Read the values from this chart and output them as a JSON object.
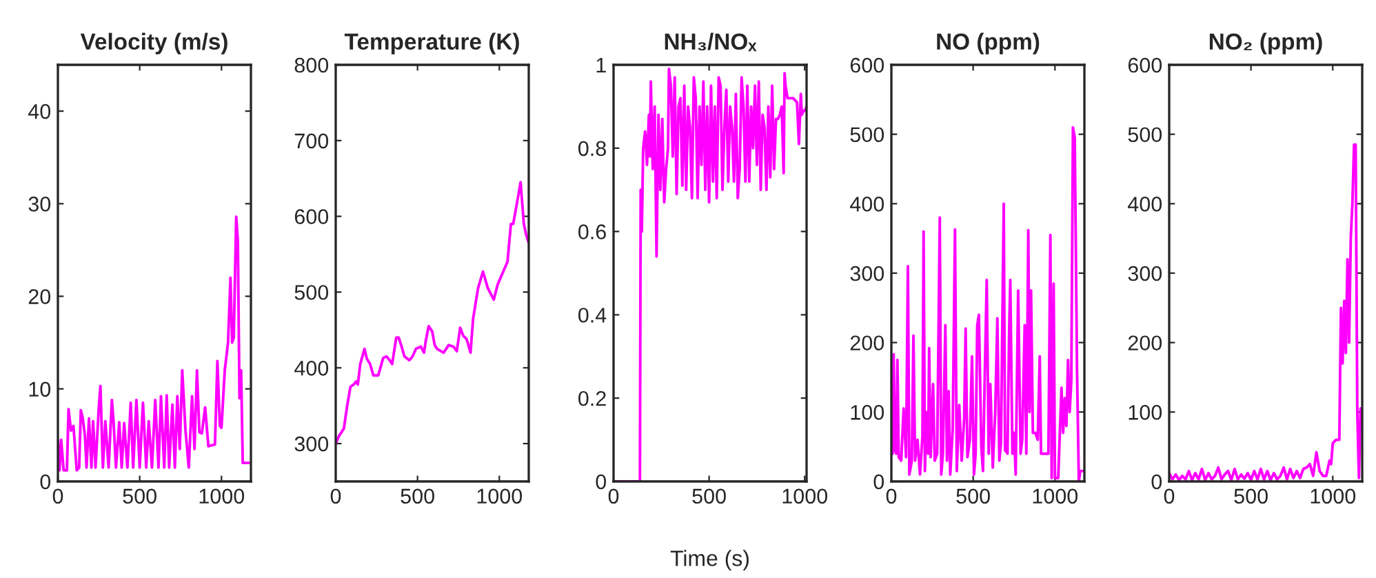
{
  "chart_data": [
    {
      "type": "line",
      "title": "Velocity (m/s)",
      "xlim": [
        0,
        1180
      ],
      "xticks": [
        0,
        500,
        1000
      ],
      "ylim": [
        0,
        45
      ],
      "yticks": [
        0,
        10,
        20,
        30,
        40
      ],
      "grid": false,
      "x": [
        0,
        10,
        20,
        35,
        55,
        65,
        80,
        95,
        115,
        130,
        140,
        150,
        165,
        175,
        190,
        205,
        215,
        230,
        250,
        260,
        275,
        290,
        310,
        330,
        340,
        355,
        375,
        390,
        405,
        425,
        445,
        460,
        480,
        500,
        520,
        540,
        555,
        575,
        595,
        615,
        630,
        650,
        665,
        680,
        700,
        715,
        730,
        745,
        760,
        780,
        800,
        820,
        835,
        850,
        865,
        880,
        900,
        920,
        960,
        975,
        990,
        1000,
        1020,
        1040,
        1055,
        1065,
        1075,
        1090,
        1100,
        1110,
        1120,
        1130,
        1140,
        1150,
        1170
      ],
      "series": [
        {
          "color": "#ff00ff",
          "values": [
            4.5,
            1.2,
            4.5,
            1.2,
            1.2,
            7.8,
            5.5,
            6,
            1.2,
            1.5,
            7.7,
            7,
            5,
            1.5,
            6.8,
            1.5,
            6.5,
            1.5,
            8,
            10.3,
            1.5,
            6.5,
            1.5,
            8.8,
            6.5,
            1.5,
            6.4,
            1.5,
            6.3,
            1.5,
            8.5,
            1.5,
            8.8,
            1.5,
            8.5,
            1.5,
            6.5,
            1.5,
            8.8,
            1.5,
            9.2,
            1.5,
            9.3,
            1.5,
            8.3,
            1.5,
            9.2,
            3.5,
            12,
            5.5,
            1.5,
            9.2,
            3.5,
            12,
            5.3,
            5.2,
            8,
            3.8,
            4,
            13,
            6,
            5.8,
            12,
            15,
            22,
            15,
            15.5,
            28.6,
            26,
            9,
            12,
            2,
            2,
            2,
            2
          ]
        }
      ]
    },
    {
      "type": "line",
      "title": "Temperature (K)",
      "xlim": [
        0,
        1180
      ],
      "xticks": [
        0,
        500,
        1000
      ],
      "ylim": [
        250,
        800
      ],
      "yticks": [
        300,
        400,
        500,
        600,
        700,
        800
      ],
      "grid": false,
      "x": [
        0,
        20,
        50,
        70,
        90,
        110,
        125,
        135,
        150,
        176,
        190,
        210,
        230,
        260,
        290,
        310,
        330,
        345,
        370,
        385,
        400,
        420,
        450,
        470,
        490,
        520,
        540,
        550,
        568,
        590,
        605,
        620,
        660,
        690,
        720,
        740,
        761,
        780,
        800,
        824,
        840,
        870,
        900,
        930,
        966,
        990,
        1020,
        1050,
        1071,
        1085,
        1110,
        1130,
        1150,
        1165,
        1180
      ],
      "series": [
        {
          "color": "#ff00ff",
          "values": [
            300,
            310,
            320,
            350,
            375,
            378,
            382,
            378,
            405,
            425,
            412,
            405,
            390,
            390,
            413,
            415,
            410,
            405,
            440,
            440,
            430,
            415,
            410,
            415,
            425,
            428,
            420,
            435,
            455,
            448,
            430,
            425,
            420,
            430,
            428,
            422,
            453,
            442,
            438,
            420,
            465,
            505,
            527,
            505,
            490,
            510,
            525,
            540,
            590,
            590,
            620,
            645,
            590,
            575,
            565
          ]
        }
      ]
    },
    {
      "type": "line",
      "title": "NH₃/NOₓ",
      "xlabel": "Time (s)",
      "xlim": [
        0,
        1010
      ],
      "xticks": [
        0,
        500,
        1000
      ],
      "ylim": [
        0,
        1
      ],
      "yticks": [
        0,
        0.2,
        0.4,
        0.6,
        0.8,
        1
      ],
      "grid": false,
      "x": [
        0,
        138,
        142,
        148,
        155,
        165,
        175,
        185,
        190,
        195,
        205,
        215,
        225,
        235,
        245,
        255,
        265,
        275,
        285,
        290,
        300,
        310,
        320,
        330,
        340,
        350,
        360,
        370,
        380,
        390,
        400,
        410,
        420,
        430,
        440,
        450,
        460,
        470,
        480,
        490,
        500,
        510,
        520,
        530,
        540,
        550,
        560,
        570,
        580,
        590,
        600,
        610,
        620,
        630,
        640,
        650,
        660,
        670,
        680,
        690,
        700,
        710,
        720,
        730,
        740,
        750,
        760,
        770,
        780,
        790,
        800,
        810,
        820,
        830,
        840,
        850,
        860,
        870,
        880,
        890,
        895,
        900,
        910,
        920,
        940,
        960,
        970,
        980,
        985,
        995,
        1002,
        1010
      ],
      "series": [
        {
          "color": "#ff00ff",
          "values": [
            0,
            0,
            0.7,
            0.6,
            0.8,
            0.84,
            0.76,
            0.88,
            0.78,
            0.96,
            0.75,
            0.9,
            0.54,
            0.88,
            0.7,
            0.87,
            0.67,
            0.75,
            0.8,
            0.99,
            0.95,
            0.78,
            0.97,
            0.69,
            0.9,
            0.92,
            0.71,
            0.95,
            0.7,
            0.9,
            0.85,
            0.68,
            0.97,
            0.92,
            0.68,
            0.9,
            0.76,
            0.96,
            0.7,
            0.9,
            0.67,
            0.95,
            0.72,
            0.9,
            0.68,
            0.97,
            0.95,
            0.7,
            0.85,
            0.94,
            0.72,
            0.9,
            0.85,
            0.72,
            0.93,
            0.68,
            0.75,
            0.97,
            0.9,
            0.72,
            0.95,
            0.72,
            0.9,
            0.8,
            0.95,
            0.76,
            0.96,
            0.7,
            0.88,
            0.85,
            0.7,
            0.9,
            0.73,
            0.95,
            0.75,
            0.87,
            0.87,
            0.88,
            0.9,
            0.74,
            0.98,
            0.95,
            0.92,
            0.92,
            0.92,
            0.91,
            0.81,
            0.93,
            0.88,
            0.89,
            0.89,
            0.9
          ]
        }
      ]
    },
    {
      "type": "line",
      "title": "NO (ppm)",
      "xlim": [
        0,
        1180
      ],
      "xticks": [
        0,
        500,
        1000
      ],
      "ylim": [
        0,
        600
      ],
      "yticks": [
        0,
        100,
        200,
        300,
        400,
        500,
        600
      ],
      "grid": false,
      "x": [
        0,
        8,
        14,
        22,
        30,
        37,
        45,
        60,
        75,
        90,
        101,
        110,
        125,
        135,
        145,
        160,
        175,
        190,
        197,
        205,
        215,
        225,
        231,
        240,
        255,
        265,
        280,
        296,
        305,
        315,
        330,
        340,
        350,
        360,
        375,
        389,
        400,
        415,
        430,
        445,
        454,
        465,
        480,
        493,
        505,
        515,
        525,
        535,
        550,
        560,
        570,
        583,
        595,
        605,
        620,
        635,
        648,
        660,
        670,
        687,
        695,
        710,
        720,
        727,
        740,
        750,
        760,
        775,
        790,
        800,
        815,
        825,
        837,
        845,
        854,
        865,
        880,
        895,
        907,
        915,
        940,
        960,
        972,
        980,
        992,
        1000,
        1020,
        1040,
        1050,
        1060,
        1070,
        1080,
        1090,
        1100,
        1110,
        1121,
        1135,
        1146,
        1155,
        1175
      ],
      "series": [
        {
          "color": "#ff00ff",
          "values": [
            130,
            40,
            183,
            45,
            40,
            175,
            35,
            30,
            105,
            35,
            310,
            10,
            30,
            210,
            30,
            60,
            10,
            65,
            360,
            15,
            100,
            40,
            192,
            35,
            140,
            30,
            40,
            380,
            10,
            40,
            225,
            30,
            130,
            10,
            75,
            363,
            15,
            110,
            30,
            90,
            220,
            35,
            60,
            180,
            10,
            40,
            225,
            240,
            50,
            15,
            140,
            290,
            40,
            140,
            20,
            100,
            235,
            30,
            55,
            400,
            45,
            40,
            215,
            290,
            40,
            70,
            10,
            275,
            40,
            60,
            225,
            40,
            362,
            100,
            275,
            70,
            70,
            60,
            180,
            40,
            40,
            40,
            355,
            5,
            285,
            5,
            5,
            135,
            70,
            120,
            80,
            175,
            100,
            145,
            510,
            495,
            160,
            0,
            15,
            15
          ]
        }
      ]
    },
    {
      "type": "line",
      "title": "NO₂ (ppm)",
      "xlim": [
        0,
        1180
      ],
      "xticks": [
        0,
        500,
        1000
      ],
      "ylim": [
        0,
        600
      ],
      "yticks": [
        0,
        100,
        200,
        300,
        400,
        500,
        600
      ],
      "grid": false,
      "x": [
        0,
        20,
        40,
        60,
        80,
        100,
        120,
        140,
        160,
        180,
        200,
        220,
        240,
        260,
        280,
        300,
        320,
        340,
        360,
        380,
        400,
        420,
        440,
        460,
        480,
        500,
        520,
        540,
        560,
        580,
        600,
        620,
        640,
        660,
        680,
        700,
        720,
        740,
        760,
        780,
        800,
        820,
        840,
        860,
        880,
        900,
        920,
        940,
        960,
        980,
        990,
        1000,
        1020,
        1040,
        1050,
        1060,
        1070,
        1080,
        1090,
        1100,
        1110,
        1120,
        1130,
        1140,
        1150,
        1160,
        1170,
        1180
      ],
      "series": [
        {
          "color": "#ff00ff",
          "values": [
            12,
            3,
            10,
            2,
            8,
            3,
            15,
            2,
            12,
            3,
            18,
            2,
            12,
            3,
            8,
            20,
            3,
            10,
            15,
            2,
            18,
            3,
            10,
            4,
            12,
            2,
            15,
            3,
            18,
            3,
            15,
            2,
            12,
            3,
            8,
            20,
            3,
            18,
            5,
            15,
            5,
            18,
            20,
            25,
            8,
            42,
            15,
            8,
            8,
            30,
            25,
            55,
            60,
            60,
            250,
            170,
            260,
            185,
            320,
            200,
            350,
            400,
            485,
            485,
            100,
            5,
            105,
            95
          ]
        }
      ]
    }
  ]
}
